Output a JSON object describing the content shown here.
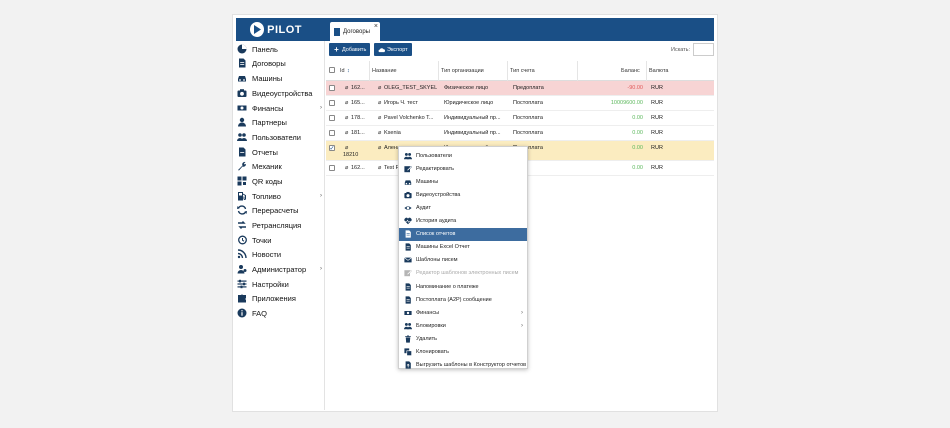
{
  "app": {
    "logo_text": "PILOT"
  },
  "tabs": [
    {
      "label": "Договоры",
      "close": "×"
    }
  ],
  "sidebar": {
    "items": [
      {
        "label": "Панель",
        "icon": "dashboard-icon"
      },
      {
        "label": "Договоры",
        "icon": "document-icon"
      },
      {
        "label": "Машины",
        "icon": "car-icon"
      },
      {
        "label": "Видеоустройства",
        "icon": "camera-icon"
      },
      {
        "label": "Финансы",
        "icon": "money-icon",
        "arrow": "›"
      },
      {
        "label": "Партнеры",
        "icon": "partner-icon"
      },
      {
        "label": "Пользователи",
        "icon": "users-icon"
      },
      {
        "label": "Отчеты",
        "icon": "report-icon"
      },
      {
        "label": "Механик",
        "icon": "wrench-icon"
      },
      {
        "label": "QR коды",
        "icon": "qr-icon"
      },
      {
        "label": "Топливо",
        "icon": "fuel-icon",
        "arrow": "›"
      },
      {
        "label": "Перерасчеты",
        "icon": "recalc-icon"
      },
      {
        "label": "Ретрансляция",
        "icon": "retrans-icon"
      },
      {
        "label": "Точки",
        "icon": "history-icon"
      },
      {
        "label": "Новости",
        "icon": "rss-icon"
      },
      {
        "label": "Администратор",
        "icon": "admin-icon",
        "arrow": "›"
      },
      {
        "label": "Настройки",
        "icon": "settings-icon"
      },
      {
        "label": "Приложения",
        "icon": "puzzle-icon"
      },
      {
        "label": "FAQ",
        "icon": "info-icon"
      }
    ]
  },
  "toolbar": {
    "add_label": "Добавить",
    "export_label": "Экспорт",
    "search_label": "Искать:",
    "search_value": ""
  },
  "table": {
    "headers": {
      "id": "Id",
      "sort": "↕",
      "name": "Название",
      "org_type": "Тип организации",
      "account_type": "Тип счета",
      "balance": "Баланс",
      "currency": "Валюта"
    },
    "rows": [
      {
        "id": "162...",
        "name": "OLEG_TEST_SKYEL",
        "org_type": "Физическое лицо",
        "account_type": "Предоплата",
        "balance": "-90.00",
        "currency": "RUR",
        "state": "negative"
      },
      {
        "id": "165...",
        "name": "Игорь Ч. тест",
        "org_type": "Юридическое лицо",
        "account_type": "Постоплата",
        "balance": "10009600.00",
        "currency": "RUR",
        "state": "normal"
      },
      {
        "id": "178...",
        "name": "Pavel Volchenko T...",
        "org_type": "Индивидуальный пр...",
        "account_type": "Постоплата",
        "balance": "0.00",
        "currency": "RUR",
        "state": "normal"
      },
      {
        "id": "181...",
        "name": "Ksenia",
        "org_type": "Индивидуальный пр...",
        "account_type": "Постоплата",
        "balance": "0.00",
        "currency": "RUR",
        "state": "normal"
      },
      {
        "id": "18210",
        "name": "Алена",
        "org_type": "Индивидуальный пр...",
        "account_type": "Постоплата",
        "balance": "0.00",
        "currency": "RUR",
        "state": "selected"
      },
      {
        "id": "162...",
        "name": "Test P",
        "org_type": "",
        "account_type": "",
        "balance": "0.00",
        "currency": "RUR",
        "state": "normal"
      }
    ]
  },
  "context_menu": {
    "items": [
      {
        "label": "Пользователи",
        "icon": "users-icon"
      },
      {
        "label": "Редактировать",
        "icon": "edit-icon"
      },
      {
        "label": "Машины",
        "icon": "car-icon"
      },
      {
        "label": "Видеоустройства",
        "icon": "camera-icon"
      },
      {
        "label": "Аудит",
        "icon": "eye-icon"
      },
      {
        "label": "История аудита",
        "icon": "heart-icon"
      },
      {
        "label": "Список отчетов",
        "icon": "document-icon",
        "active": true
      },
      {
        "label": "Машины Excel Отчет",
        "icon": "document-icon"
      },
      {
        "label": "Шаблоны писем",
        "icon": "mail-icon"
      },
      {
        "label": "Редактор шаблонов электронных писем",
        "icon": "edit-icon",
        "disabled": true
      },
      {
        "label": "Напоминание о платеже",
        "icon": "document-icon"
      },
      {
        "label": "Постоплата (A2P) сообщение",
        "icon": "document-icon"
      },
      {
        "label": "Финансы",
        "icon": "money-icon",
        "arrow": "›"
      },
      {
        "label": "Блокировки",
        "icon": "users-icon",
        "arrow": "›"
      },
      {
        "label": "Удалить",
        "icon": "trash-icon"
      },
      {
        "label": "Клонировать",
        "icon": "clone-icon"
      },
      {
        "label": "Выгрузить шаблоны в Конструктор отчетов",
        "icon": "upload-icon"
      }
    ]
  },
  "colors": {
    "brand": "#1a4f86",
    "negative_row": "#f7d4d4",
    "selected_row": "#fbecc0",
    "positive": "#5cb85c",
    "negative": "#e05a5a",
    "menu_active": "#3d6c9f"
  }
}
